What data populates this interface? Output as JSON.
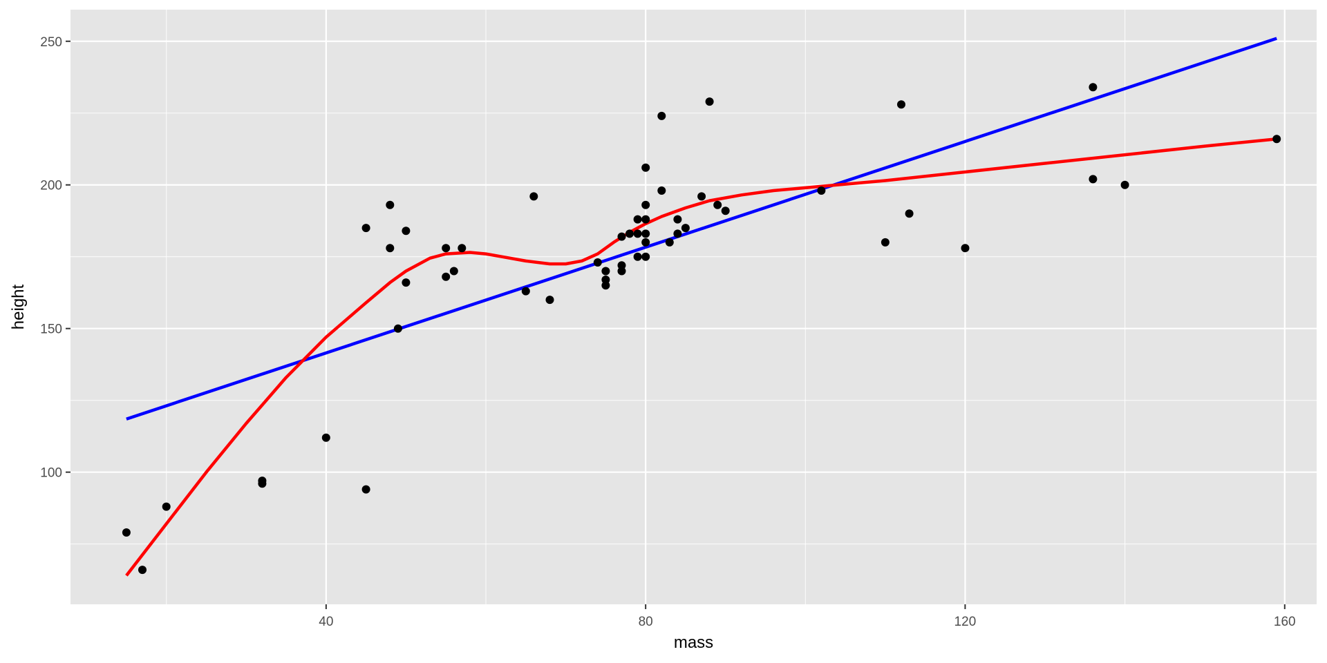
{
  "chart_data": {
    "type": "scatter",
    "xlabel": "mass",
    "ylabel": "height",
    "xlim": [
      8,
      164
    ],
    "ylim": [
      54,
      261
    ],
    "x_ticks": [
      40,
      80,
      120,
      160
    ],
    "y_ticks": [
      100,
      150,
      200,
      250
    ],
    "grid": true,
    "legend": "none",
    "colors": {
      "panel": "#e5e5e5",
      "points": "#000000",
      "linear_fit": "#0000ff",
      "smooth_fit": "#ff0000"
    },
    "points": [
      [
        15,
        79
      ],
      [
        17,
        66
      ],
      [
        20,
        88
      ],
      [
        32,
        97
      ],
      [
        32,
        96
      ],
      [
        40,
        112
      ],
      [
        45,
        185
      ],
      [
        45,
        94
      ],
      [
        48,
        193
      ],
      [
        48,
        178
      ],
      [
        49,
        150
      ],
      [
        50,
        184
      ],
      [
        50,
        166
      ],
      [
        55,
        178
      ],
      [
        55,
        168
      ],
      [
        56,
        170
      ],
      [
        57,
        178
      ],
      [
        65,
        163
      ],
      [
        66,
        196
      ],
      [
        68,
        160
      ],
      [
        74,
        173
      ],
      [
        75,
        170
      ],
      [
        75,
        167
      ],
      [
        75,
        165
      ],
      [
        77,
        182
      ],
      [
        77,
        172
      ],
      [
        77,
        170
      ],
      [
        78,
        183
      ],
      [
        79,
        188
      ],
      [
        79,
        183
      ],
      [
        79,
        175
      ],
      [
        80,
        206
      ],
      [
        80,
        193
      ],
      [
        80,
        188
      ],
      [
        80,
        183
      ],
      [
        80,
        180
      ],
      [
        80,
        175
      ],
      [
        82,
        224
      ],
      [
        82,
        198
      ],
      [
        83,
        180
      ],
      [
        84,
        188
      ],
      [
        84,
        183
      ],
      [
        85,
        185
      ],
      [
        87,
        196
      ],
      [
        88,
        229
      ],
      [
        89,
        193
      ],
      [
        90,
        191
      ],
      [
        102,
        198
      ],
      [
        110,
        180
      ],
      [
        112,
        228
      ],
      [
        113,
        190
      ],
      [
        120,
        178
      ],
      [
        136,
        234
      ],
      [
        136,
        202
      ],
      [
        140,
        200
      ],
      [
        159,
        216
      ]
    ],
    "series": [
      {
        "type": "line",
        "color": "#0000ff",
        "x": [
          15,
          159
        ],
        "y": [
          118.5,
          251
        ]
      },
      {
        "type": "line",
        "color": "#ff0000",
        "x": [
          15,
          20,
          25,
          30,
          35,
          40,
          45,
          48,
          50,
          53,
          55,
          58,
          60,
          62,
          65,
          68,
          70,
          72,
          74,
          76,
          78,
          80,
          82,
          85,
          88,
          92,
          96,
          100,
          110,
          120,
          130,
          140,
          150,
          159
        ],
        "y": [
          64,
          82,
          100,
          117,
          133,
          147,
          159,
          166,
          170,
          174.5,
          176,
          176.5,
          176,
          175,
          173.5,
          172.5,
          172.5,
          173.5,
          176,
          180,
          183.5,
          186.5,
          189,
          192,
          194.5,
          196.5,
          198,
          199,
          201.5,
          204.5,
          207.5,
          210.5,
          213.5,
          216
        ]
      }
    ]
  }
}
